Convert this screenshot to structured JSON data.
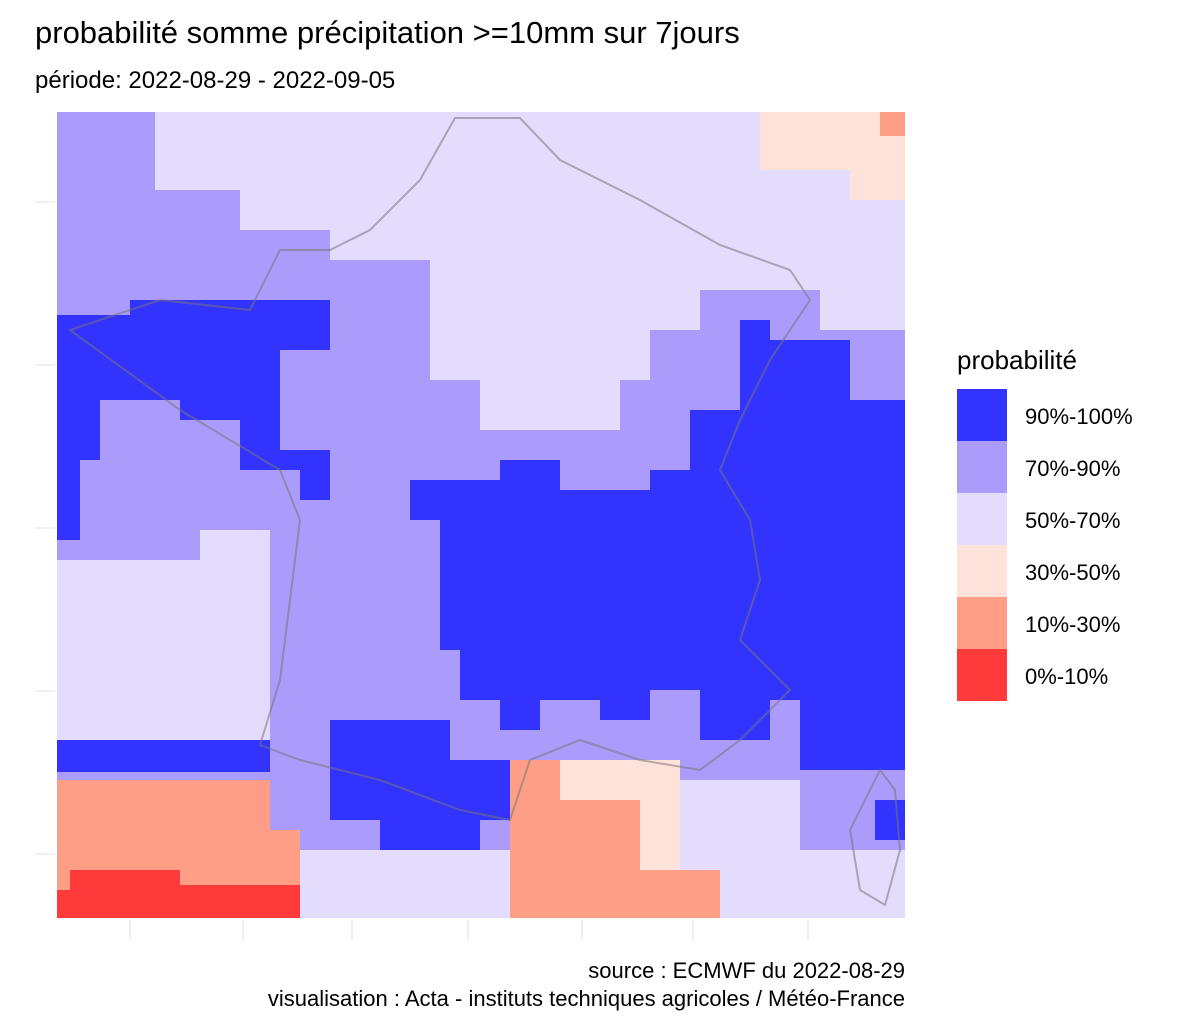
{
  "title": "probabilité somme précipitation >=10mm sur 7jours",
  "subtitle": "période: 2022-08-29 - 2022-09-05",
  "legend": {
    "title": "probabilité",
    "items": [
      {
        "label": "90%-100%",
        "color": "#3333ff"
      },
      {
        "label": "70%-90%",
        "color": "#ab9bfb"
      },
      {
        "label": "50%-70%",
        "color": "#e4dcfd"
      },
      {
        "label": "30%-50%",
        "color": "#ffe2da"
      },
      {
        "label": "10%-30%",
        "color": "#ff9e86"
      },
      {
        "label": "0%-10%",
        "color": "#ff3a3a"
      }
    ]
  },
  "caption": [
    "source : ECMWF du 2022-08-29",
    "visualisation : Acta - instituts techniques agricoles / Météo-France"
  ]
}
